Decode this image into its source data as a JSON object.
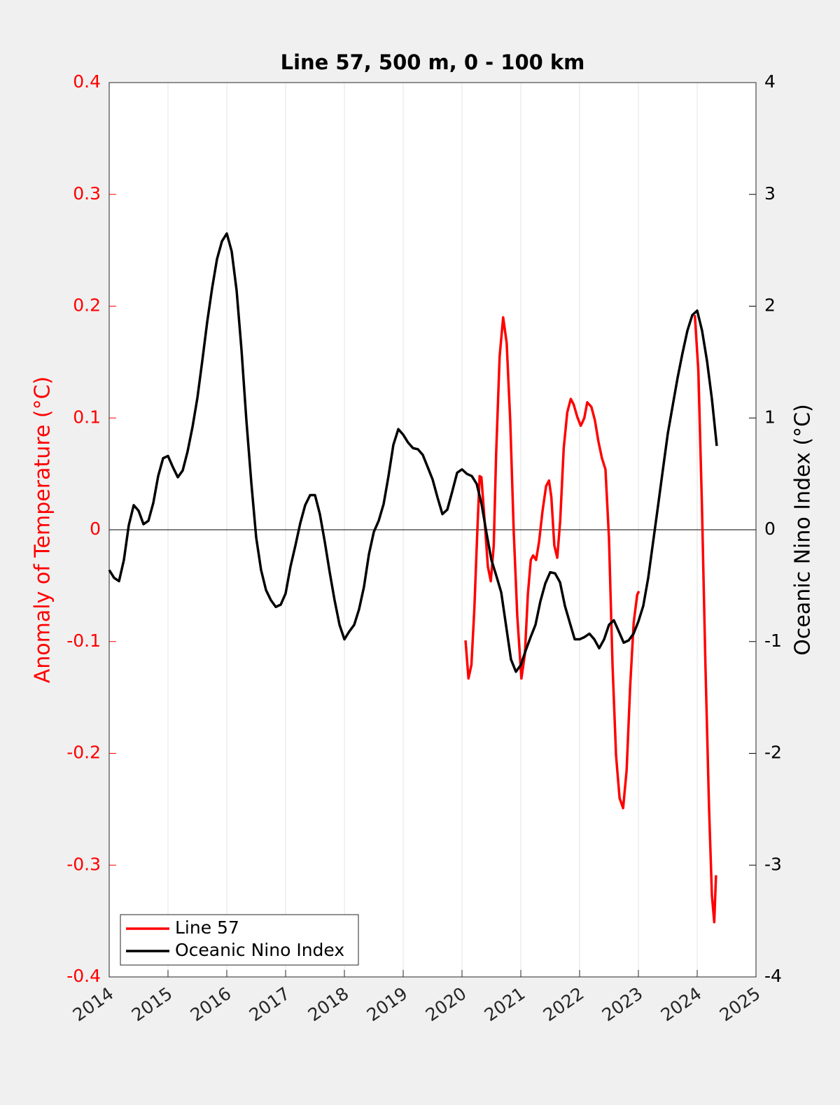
{
  "chart_data": {
    "type": "line",
    "title": "Line 57, 500 m, 0 - 100 km",
    "y_label": "Anomaly of Temperature (°C)",
    "y2_label": "Oceanic Nino Index (°C)",
    "y_axis_color": "#ff0000",
    "y2_axis_color": "#000000",
    "xlim": [
      2014,
      2025
    ],
    "xticks": [
      2014,
      2015,
      2016,
      2017,
      2018,
      2019,
      2020,
      2021,
      2022,
      2023,
      2024,
      2025
    ],
    "ylim": [
      -0.4,
      0.4
    ],
    "yticks": [
      -0.4,
      -0.3,
      -0.2,
      -0.1,
      0,
      0.1,
      0.2,
      0.3,
      0.4
    ],
    "y2lim": [
      -4,
      4
    ],
    "y2ticks": [
      -4,
      -3,
      -2,
      -1,
      0,
      1,
      2,
      3,
      4
    ],
    "grid": "x",
    "zero_line": true,
    "legend": "lower left",
    "series": [
      {
        "name": "Line 57",
        "color": "#ff0000",
        "axis": "y",
        "x": [
          2020.06,
          2020.11,
          2020.16,
          2020.21,
          2020.26,
          2020.3,
          2020.33,
          2020.39,
          2020.44,
          2020.49,
          2020.54,
          2020.58,
          2020.64,
          2020.7,
          2020.76,
          2020.82,
          2020.88,
          2020.94,
          2021.01,
          2021.07,
          2021.12,
          2021.17,
          2021.21,
          2021.26,
          2021.31,
          2021.37,
          2021.43,
          2021.48,
          2021.52,
          2021.57,
          2021.62,
          2021.67,
          2021.73,
          2021.79,
          2021.85,
          2021.9,
          2021.96,
          2022.02,
          2022.08,
          2022.13,
          2022.2,
          2022.26,
          2022.32,
          2022.38,
          2022.44,
          2022.5,
          2022.56,
          2022.62,
          2022.68,
          2022.74,
          2022.8,
          2022.86,
          2022.92,
          2022.98,
          2023.01,
          2023.5,
          2023.96,
          2024.02,
          2024.08,
          2024.14,
          2024.2,
          2024.25,
          2024.29,
          2024.32
        ],
        "values": [
          -0.099,
          -0.133,
          -0.121,
          -0.071,
          -0.002,
          0.048,
          0.047,
          0.004,
          -0.033,
          -0.046,
          -0.014,
          0.067,
          0.155,
          0.19,
          0.167,
          0.098,
          -0.002,
          -0.077,
          -0.133,
          -0.111,
          -0.058,
          -0.027,
          -0.023,
          -0.027,
          -0.011,
          0.017,
          0.039,
          0.044,
          0.029,
          -0.014,
          -0.025,
          0.008,
          0.073,
          0.105,
          0.117,
          0.112,
          0.101,
          0.093,
          0.1,
          0.114,
          0.11,
          0.098,
          0.079,
          0.064,
          0.054,
          -0.008,
          -0.121,
          -0.202,
          -0.24,
          -0.249,
          -0.215,
          -0.14,
          -0.083,
          -0.058,
          -0.055,
          null,
          0.192,
          0.142,
          0.023,
          -0.121,
          -0.246,
          -0.327,
          -0.351,
          -0.309
        ]
      },
      {
        "name": "Oceanic Nino Index",
        "color": "#000000",
        "axis": "y2",
        "x": [
          2014.0,
          2014.083,
          2014.167,
          2014.25,
          2014.333,
          2014.417,
          2014.5,
          2014.583,
          2014.667,
          2014.75,
          2014.833,
          2014.917,
          2015.0,
          2015.083,
          2015.167,
          2015.25,
          2015.333,
          2015.417,
          2015.5,
          2015.583,
          2015.667,
          2015.75,
          2015.833,
          2015.917,
          2016.0,
          2016.083,
          2016.167,
          2016.25,
          2016.333,
          2016.417,
          2016.5,
          2016.583,
          2016.667,
          2016.75,
          2016.833,
          2016.917,
          2017.0,
          2017.083,
          2017.167,
          2017.25,
          2017.333,
          2017.417,
          2017.5,
          2017.583,
          2017.667,
          2017.75,
          2017.833,
          2017.917,
          2018.0,
          2018.083,
          2018.167,
          2018.25,
          2018.333,
          2018.417,
          2018.5,
          2018.583,
          2018.667,
          2018.75,
          2018.833,
          2018.917,
          2019.0,
          2019.083,
          2019.167,
          2019.25,
          2019.333,
          2019.417,
          2019.5,
          2019.583,
          2019.667,
          2019.75,
          2019.833,
          2019.917,
          2020.0,
          2020.083,
          2020.167,
          2020.25,
          2020.333,
          2020.417,
          2020.5,
          2020.583,
          2020.667,
          2020.75,
          2020.833,
          2020.917,
          2021.0,
          2021.083,
          2021.167,
          2021.25,
          2021.333,
          2021.417,
          2021.5,
          2021.583,
          2021.667,
          2021.75,
          2021.833,
          2021.917,
          2022.0,
          2022.083,
          2022.167,
          2022.25,
          2022.333,
          2022.417,
          2022.5,
          2022.583,
          2022.667,
          2022.75,
          2022.833,
          2022.917,
          2023.0,
          2023.083,
          2023.167,
          2023.25,
          2023.333,
          2023.417,
          2023.5,
          2023.583,
          2023.667,
          2023.75,
          2023.833,
          2023.917,
          2024.0,
          2024.083,
          2024.167,
          2024.25,
          2024.333
        ],
        "values": [
          -0.36,
          -0.43,
          -0.46,
          -0.27,
          0.04,
          0.22,
          0.17,
          0.05,
          0.08,
          0.24,
          0.48,
          0.64,
          0.66,
          0.56,
          0.47,
          0.53,
          0.7,
          0.92,
          1.18,
          1.51,
          1.86,
          2.16,
          2.42,
          2.58,
          2.65,
          2.49,
          2.14,
          1.61,
          0.98,
          0.42,
          -0.07,
          -0.36,
          -0.54,
          -0.63,
          -0.69,
          -0.67,
          -0.57,
          -0.33,
          -0.14,
          0.06,
          0.22,
          0.31,
          0.31,
          0.14,
          -0.11,
          -0.38,
          -0.63,
          -0.85,
          -0.98,
          -0.91,
          -0.85,
          -0.71,
          -0.51,
          -0.22,
          -0.02,
          0.08,
          0.23,
          0.48,
          0.76,
          0.9,
          0.85,
          0.78,
          0.73,
          0.72,
          0.67,
          0.56,
          0.45,
          0.29,
          0.14,
          0.18,
          0.34,
          0.51,
          0.54,
          0.5,
          0.48,
          0.41,
          0.23,
          -0.03,
          -0.27,
          -0.41,
          -0.56,
          -0.86,
          -1.16,
          -1.27,
          -1.21,
          -1.08,
          -0.96,
          -0.85,
          -0.64,
          -0.48,
          -0.38,
          -0.39,
          -0.47,
          -0.68,
          -0.83,
          -0.98,
          -0.98,
          -0.96,
          -0.93,
          -0.98,
          -1.06,
          -0.98,
          -0.85,
          -0.81,
          -0.91,
          -1.01,
          -0.99,
          -0.93,
          -0.82,
          -0.68,
          -0.43,
          -0.11,
          0.21,
          0.54,
          0.86,
          1.11,
          1.36,
          1.58,
          1.78,
          1.92,
          1.96,
          1.78,
          1.51,
          1.17,
          0.75
        ]
      }
    ]
  }
}
